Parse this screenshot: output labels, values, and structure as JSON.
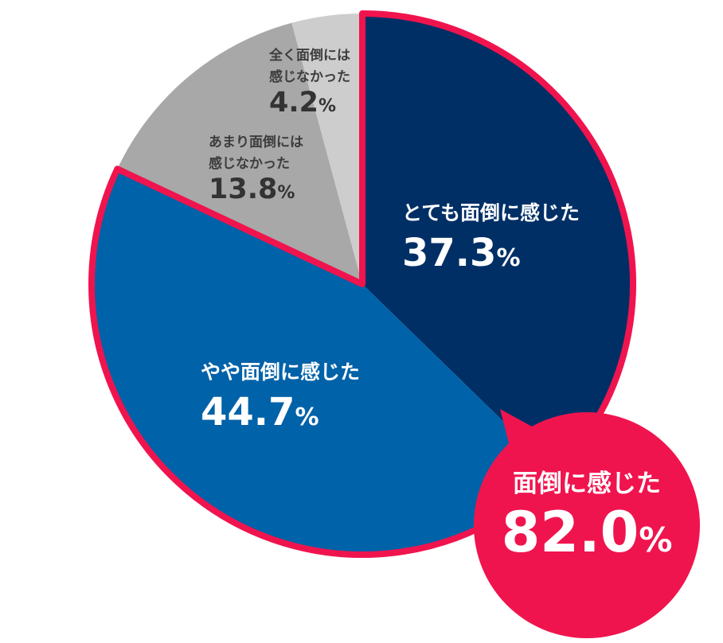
{
  "chart_data": {
    "type": "pie",
    "unit": "%",
    "slices": [
      {
        "label": "とても面倒に感じた",
        "value": 37.3,
        "value_text": "37.3",
        "color": "#002F66",
        "highlighted": true
      },
      {
        "label": "やや面倒に感じた",
        "value": 44.7,
        "value_text": "44.7",
        "color": "#0062A8",
        "highlighted": true
      },
      {
        "label": "あまり面倒には\n感じなかった",
        "value": 13.8,
        "value_text": "13.8",
        "color": "#A8A8A8",
        "highlighted": false
      },
      {
        "label": "全く面倒には\n感じなかった",
        "value": 4.2,
        "value_text": "4.2",
        "color": "#CDCDCD",
        "highlighted": false
      }
    ],
    "start": "12 o'clock",
    "direction": "clockwise",
    "highlight_outline_color": "#F0144E",
    "callout": {
      "label": "面倒に感じた",
      "value": 82.0,
      "value_text": "82.0",
      "color": "#F0144E"
    }
  }
}
